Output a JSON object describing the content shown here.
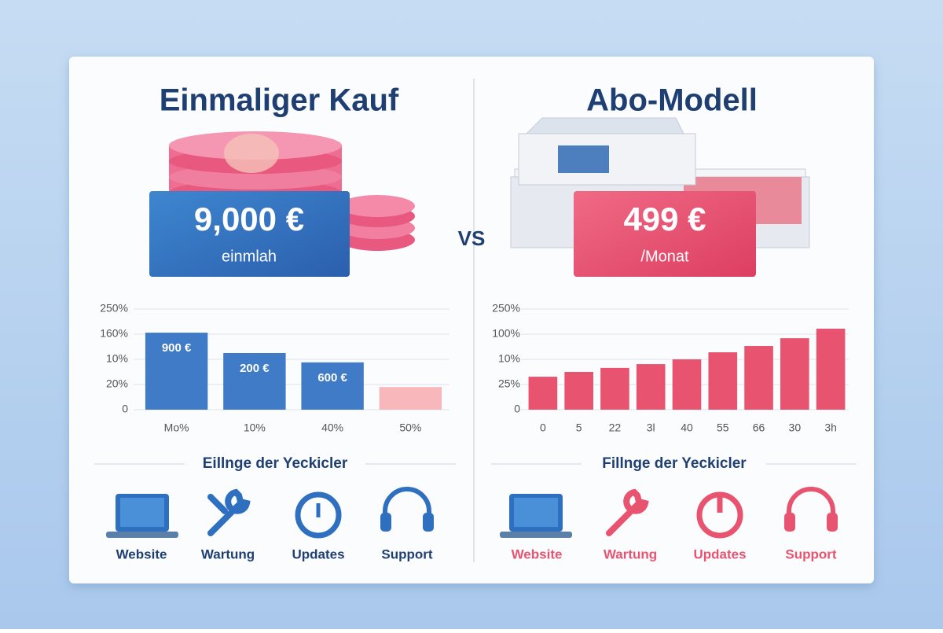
{
  "left": {
    "title": "Einmaliger Kauf",
    "price": "9,000 €",
    "price_note": "einmlah",
    "section": "Eillnge der Yeckicler",
    "features": [
      "Website",
      "Wartung",
      "Updates",
      "Support"
    ]
  },
  "right": {
    "title": "Abo-Modell",
    "price": "499 €",
    "price_note": "/Monat",
    "section": "Fillnge der Yeckicler",
    "features": [
      "Website",
      "Wartung",
      "Updates",
      "Support"
    ]
  },
  "vs": "VS",
  "chart_data": [
    {
      "type": "bar",
      "categories": [
        "Mo%",
        "10%",
        "40%",
        "50%"
      ],
      "values": [
        3.06,
        2.25,
        1.88,
        0.9
      ],
      "bar_labels": [
        "900 €",
        "200 €",
        "600 €",
        null
      ],
      "colors": [
        "#3f7bc6",
        "#3f7bc6",
        "#3f7bc6",
        "#f7b7bb"
      ],
      "ylim": [
        0,
        4
      ],
      "yticks": [
        0,
        {
          "value": 1,
          "label": "20%"
        },
        {
          "value": 2,
          "label": "10%"
        },
        {
          "value": 3,
          "label": "160%"
        },
        {
          "value": 4,
          "label": "250%"
        }
      ],
      "grid": true
    },
    {
      "type": "bar",
      "categories": [
        "0",
        "5",
        "22",
        "3l",
        "40",
        "55",
        "66",
        "30",
        "3h"
      ],
      "values": [
        1.31,
        1.5,
        1.66,
        1.81,
        2.0,
        2.28,
        2.53,
        2.84,
        3.22
      ],
      "color": "#e8546f",
      "ylim": [
        0,
        4
      ],
      "yticks": [
        0,
        {
          "value": 1,
          "label": "25%"
        },
        {
          "value": 2,
          "label": "10%"
        },
        {
          "value": 3,
          "label": "100%"
        },
        {
          "value": 4,
          "label": "250%"
        }
      ],
      "grid": true
    }
  ]
}
